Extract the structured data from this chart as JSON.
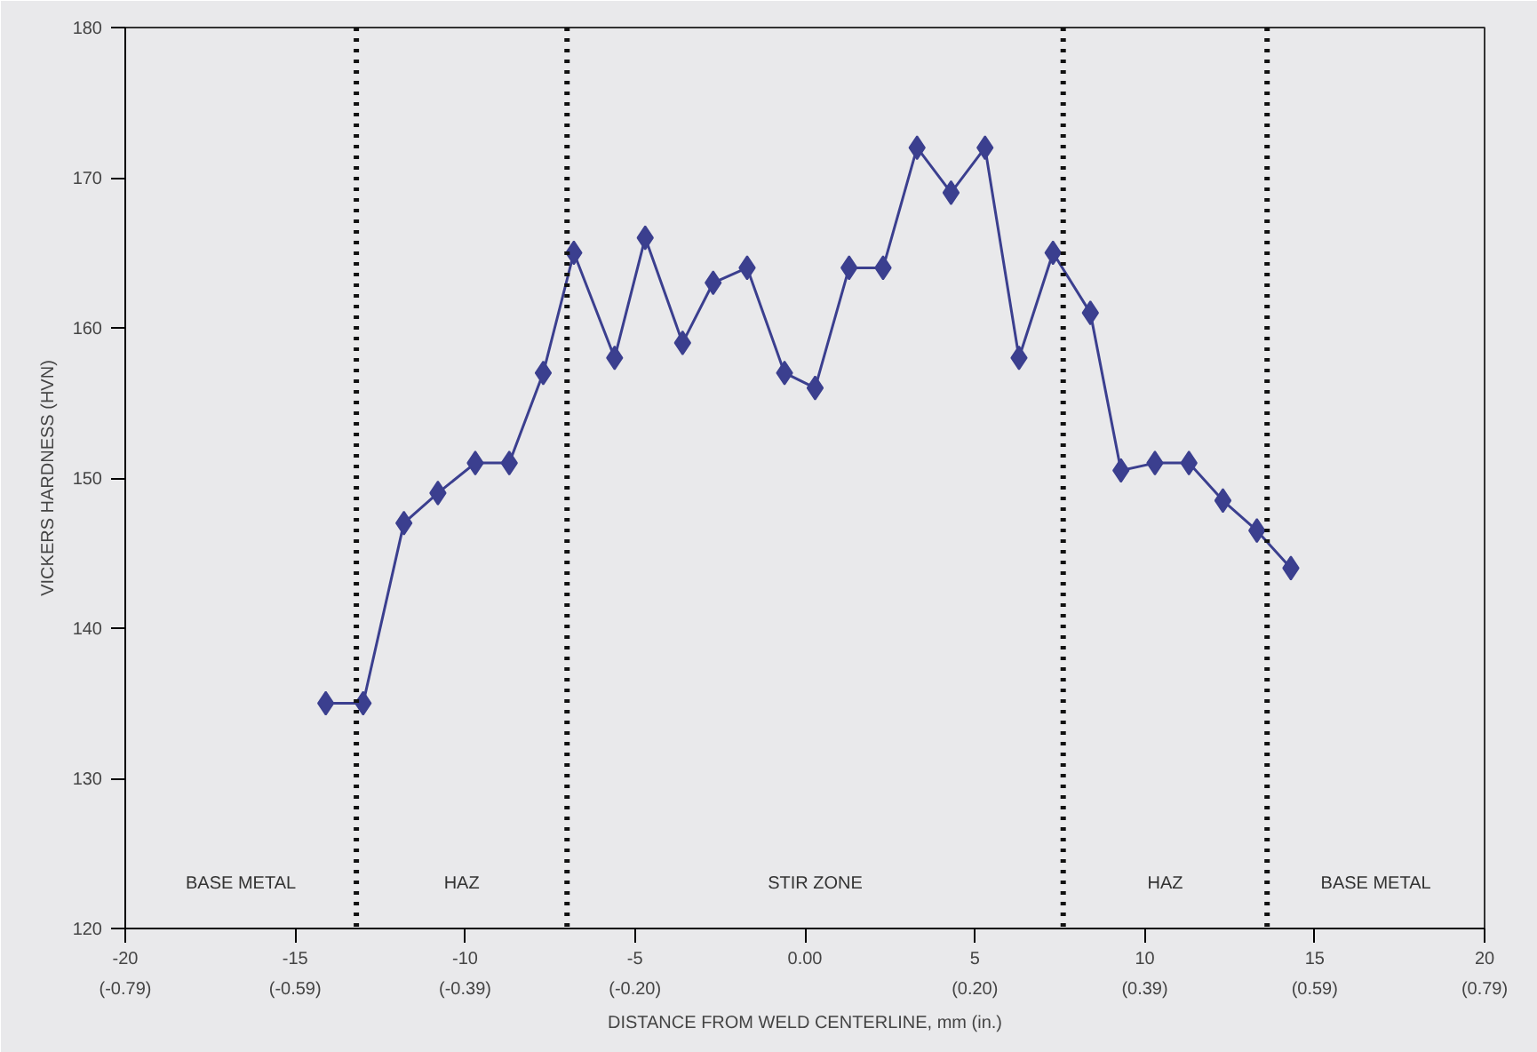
{
  "chart_data": {
    "type": "line",
    "xlabel": "DISTANCE FROM WELD CENTERLINE, mm (in.)",
    "ylabel": "VICKERS HARDNESS (HVN)",
    "x": [
      -14.1,
      -13.0,
      -11.8,
      -10.8,
      -9.7,
      -8.7,
      -7.7,
      -6.8,
      -5.6,
      -4.7,
      -3.6,
      -2.7,
      -1.7,
      -0.6,
      0.3,
      1.3,
      2.3,
      3.3,
      4.3,
      5.3,
      6.3,
      7.3,
      8.4,
      9.3,
      10.3,
      11.3,
      12.3,
      13.3,
      14.3
    ],
    "series": [
      {
        "color": "#3b3f8f",
        "values": [
          135,
          135,
          147,
          149,
          151,
          151,
          157,
          165,
          158,
          166,
          159,
          163,
          164,
          157,
          156,
          164,
          164,
          172,
          169,
          172,
          158,
          165,
          161,
          150.5,
          151,
          151,
          148.5,
          146.5,
          144
        ]
      }
    ],
    "xlim": [
      -20,
      20
    ],
    "ylim": [
      120,
      180
    ],
    "xticks": [
      -20,
      -15,
      -10,
      -5,
      {
        "value": 0,
        "label": "0.00"
      },
      5,
      10,
      15,
      20
    ],
    "x2lim": [
      -0.7874,
      0.7874
    ],
    "x2ticks": [
      {
        "value": -0.7874,
        "label": "(-0.79)"
      },
      {
        "value": -0.5906,
        "label": "(-0.59)"
      },
      {
        "value": -0.3937,
        "label": "(-0.39)"
      },
      {
        "value": -0.1969,
        "label": "(-0.20)"
      },
      {
        "value": 0.1969,
        "label": "(0.20)"
      },
      {
        "value": 0.3937,
        "label": "(0.39)"
      },
      {
        "value": 0.5906,
        "label": "(0.59)"
      },
      {
        "value": 0.7874,
        "label": "(0.79)"
      }
    ],
    "yticks": [
      120,
      130,
      140,
      150,
      160,
      170,
      180
    ],
    "ref_lines": [
      {
        "axis": "x",
        "value": -13.2,
        "line_style": "dotted",
        "color": "#111111"
      },
      {
        "axis": "x",
        "value": -7.0,
        "line_style": "dotted",
        "color": "#111111"
      },
      {
        "axis": "x",
        "value": 7.6,
        "line_style": "dotted",
        "color": "#111111"
      },
      {
        "axis": "x",
        "value": 13.6,
        "line_style": "dotted",
        "color": "#111111"
      }
    ],
    "annotations": [
      "BASE METAL",
      "HAZ",
      "STIR ZONE",
      "HAZ",
      "BASE METAL"
    ],
    "grid": false,
    "marker": "diamond",
    "line_style": "solid"
  }
}
